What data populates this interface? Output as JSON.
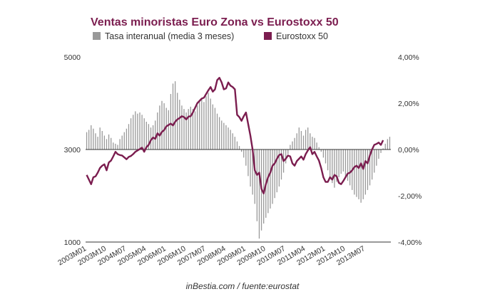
{
  "chart_data": {
    "type": "bar",
    "title": "Ventas minoristas Euro Zona vs Eurostoxx 50",
    "legend": {
      "placement": "top",
      "entries": [
        {
          "label": "Tasa interanual (media 3 meses)",
          "color": "#999999"
        },
        {
          "label": "Eurostoxx 50",
          "color": "#7b1d4f"
        }
      ]
    },
    "y_left": {
      "min": 1000,
      "max": 5000,
      "ticks": [
        "1000",
        "3000",
        "5000"
      ]
    },
    "y_right": {
      "min": -4,
      "max": 4,
      "ticks": [
        "4,00%",
        "2,00%",
        "0,00%",
        "-2,00%",
        "-4,00%"
      ]
    },
    "x_ticks": [
      "2003M01",
      "2003M10",
      "2004M07",
      "2005M04",
      "2006M01",
      "2006M10",
      "2007M07",
      "2008M04",
      "2009M01",
      "2009M10",
      "2010M07",
      "2011M04",
      "2012M01",
      "2012M10",
      "2013M07"
    ],
    "grid": false,
    "series": [
      {
        "name": "Tasa interanual (media 3 meses)",
        "kind": "bar",
        "axis": "right",
        "color": "#999999",
        "start": "2003M01",
        "values": [
          0.75,
          0.85,
          1.05,
          0.9,
          0.7,
          0.55,
          0.95,
          0.8,
          0.6,
          0.45,
          0.65,
          0.5,
          0.3,
          0.25,
          0.2,
          0.45,
          0.6,
          0.75,
          0.9,
          1.1,
          1.35,
          1.5,
          1.65,
          1.55,
          1.6,
          1.5,
          1.35,
          1.2,
          1.1,
          0.95,
          1.05,
          1.25,
          1.6,
          1.9,
          2.1,
          2.0,
          1.8,
          1.7,
          2.4,
          2.85,
          2.95,
          2.45,
          2.15,
          1.9,
          1.75,
          1.6,
          1.75,
          1.85,
          1.75,
          1.65,
          1.9,
          2.05,
          2.15,
          2.05,
          2.3,
          2.45,
          2.2,
          1.95,
          1.8,
          1.55,
          1.4,
          1.25,
          1.15,
          1.05,
          0.95,
          0.85,
          0.7,
          0.55,
          0.35,
          0.15,
          -0.1,
          -0.35,
          -0.7,
          -1.15,
          -1.6,
          -1.95,
          -2.35,
          -3.1,
          -3.85,
          -3.5,
          -3.2,
          -2.95,
          -2.75,
          -2.55,
          -2.35,
          -2.1,
          -1.85,
          -1.6,
          -1.3,
          -1.0,
          -0.6,
          -0.2,
          0.2,
          0.35,
          0.5,
          0.7,
          0.95,
          0.8,
          0.6,
          0.85,
          0.95,
          0.7,
          0.55,
          0.5,
          0.3,
          0.1,
          -0.1,
          -0.35,
          -0.6,
          -0.9,
          -1.2,
          -1.45,
          -1.65,
          -1.4,
          -1.2,
          -1.05,
          -0.95,
          -1.15,
          -1.35,
          -1.55,
          -1.75,
          -1.95,
          -2.05,
          -2.15,
          -2.3,
          -2.15,
          -1.95,
          -1.75,
          -1.55,
          -1.3,
          -1.0,
          -0.7,
          -0.4,
          -0.15,
          0.05,
          0.25,
          0.45,
          0.55
        ]
      },
      {
        "name": "Eurostoxx 50",
        "kind": "line",
        "axis": "left",
        "color": "#7b1d4f",
        "start": "2003M01",
        "values": [
          2450,
          2350,
          2250,
          2400,
          2420,
          2500,
          2600,
          2650,
          2680,
          2550,
          2720,
          2760,
          2850,
          2950,
          2900,
          2880,
          2870,
          2830,
          2790,
          2840,
          2860,
          2900,
          2950,
          2980,
          3010,
          3040,
          2950,
          3050,
          3100,
          3200,
          3260,
          3230,
          3350,
          3300,
          3380,
          3420,
          3500,
          3530,
          3560,
          3520,
          3600,
          3650,
          3680,
          3720,
          3700,
          3650,
          3710,
          3720,
          3800,
          3900,
          4000,
          4050,
          4100,
          4120,
          4200,
          4280,
          4350,
          4250,
          4300,
          4500,
          4550,
          4450,
          4300,
          4320,
          4450,
          4380,
          4350,
          4300,
          3750,
          3700,
          3620,
          3720,
          3800,
          3550,
          3300,
          3000,
          2550,
          2450,
          2500,
          2150,
          2050,
          2250,
          2400,
          2500,
          2650,
          2700,
          2800,
          2880,
          2900,
          2750,
          2800,
          2870,
          2850,
          2700,
          2650,
          2750,
          2800,
          2850,
          2780,
          2900,
          2980,
          3050,
          2900,
          2950,
          2850,
          2760,
          2600,
          2400,
          2300,
          2300,
          2400,
          2350,
          2450,
          2420,
          2280,
          2250,
          2320,
          2400,
          2480,
          2500,
          2550,
          2620,
          2650,
          2600,
          2700,
          2580,
          2750,
          2700,
          2870,
          3000,
          3100,
          3120,
          3150,
          3100,
          3200
        ]
      }
    ],
    "source_text": "inBestia.com / fuente:eurostat"
  }
}
